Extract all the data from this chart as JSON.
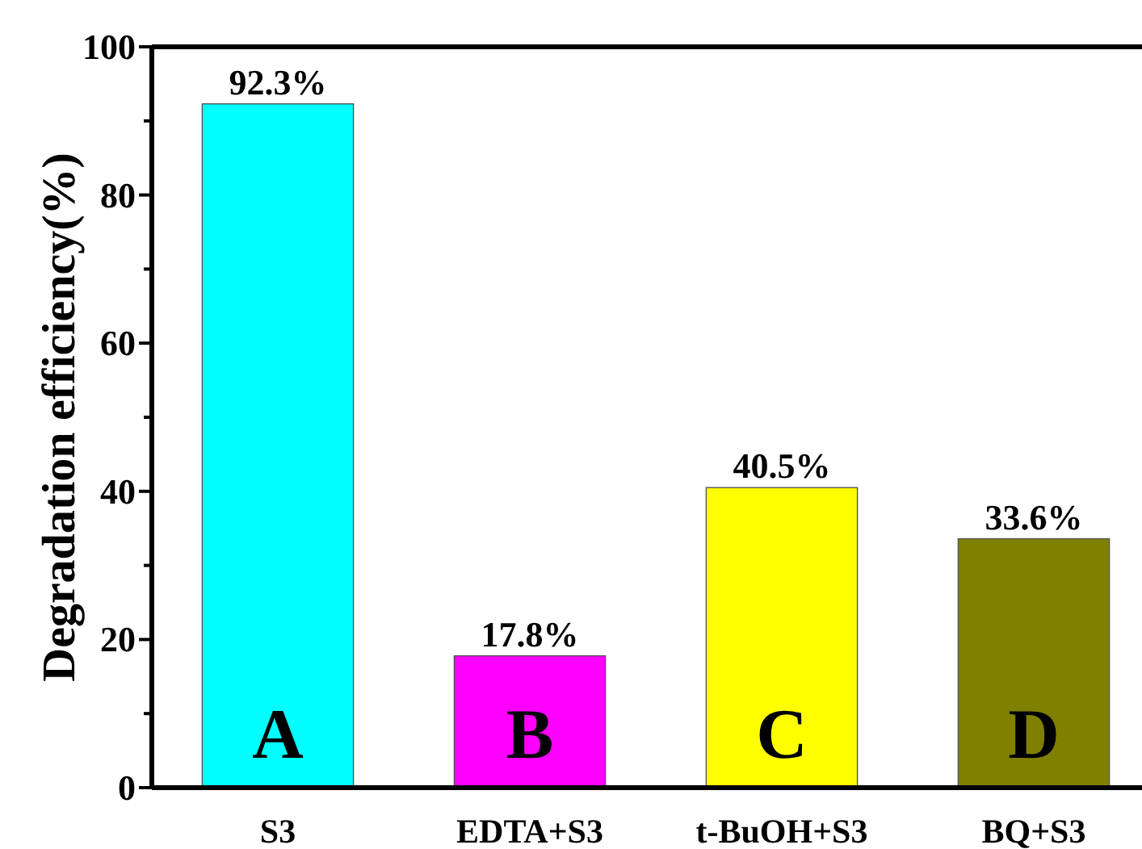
{
  "chart_data": {
    "type": "bar",
    "ylabel": "Degradation efficiency(%)",
    "categories": [
      "S3",
      "EDTA+S3",
      "t-BuOH+S3",
      "BQ+S3"
    ],
    "values": [
      92.3,
      17.8,
      40.5,
      33.6
    ],
    "colors": [
      "#00ffff",
      "#ff00ff",
      "#ffff00",
      "#808000"
    ],
    "value_labels": [
      "92.3%",
      "17.8%",
      "40.5%",
      "33.6%"
    ],
    "ylim": [
      0,
      100
    ],
    "yticks": [
      0,
      {
        "value": 10,
        "label": null
      },
      20,
      {
        "value": 30,
        "label": null
      },
      40,
      {
        "value": 50,
        "label": null
      },
      60,
      {
        "value": 70,
        "label": null
      },
      80,
      {
        "value": 90,
        "label": null
      },
      100
    ],
    "annotations": [
      "A",
      "B",
      "C",
      "D"
    ]
  }
}
